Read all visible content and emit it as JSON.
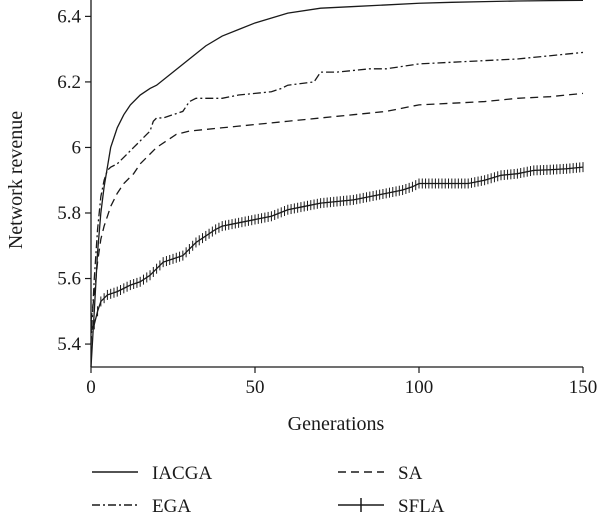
{
  "chart_data": {
    "type": "line",
    "title": "",
    "xlabel": "Generations",
    "ylabel": "Network revenue",
    "xlim": [
      0,
      150
    ],
    "ylim": [
      5.33,
      6.45
    ],
    "xticks": [
      0,
      50,
      100,
      150
    ],
    "yticks": [
      5.4,
      5.6,
      5.8,
      6,
      6.2,
      6.4
    ],
    "xtick_labels": [
      "0",
      "50",
      "100",
      "150"
    ],
    "ytick_labels": [
      "5.4",
      "5.6",
      "5.8",
      "6",
      "6.2",
      "6.4"
    ],
    "grid": false,
    "legend_position": "bottom",
    "series": [
      {
        "name": "IACGA",
        "style": "solid",
        "points": [
          [
            0,
            5.33
          ],
          [
            1,
            5.5
          ],
          [
            2,
            5.68
          ],
          [
            3,
            5.8
          ],
          [
            4,
            5.88
          ],
          [
            5,
            5.94
          ],
          [
            6,
            6.0
          ],
          [
            7,
            6.03
          ],
          [
            8,
            6.06
          ],
          [
            10,
            6.1
          ],
          [
            12,
            6.13
          ],
          [
            15,
            6.16
          ],
          [
            18,
            6.18
          ],
          [
            20,
            6.19
          ],
          [
            25,
            6.23
          ],
          [
            30,
            6.27
          ],
          [
            35,
            6.31
          ],
          [
            40,
            6.34
          ],
          [
            45,
            6.36
          ],
          [
            50,
            6.38
          ],
          [
            60,
            6.41
          ],
          [
            70,
            6.425
          ],
          [
            80,
            6.43
          ],
          [
            90,
            6.435
          ],
          [
            100,
            6.44
          ],
          [
            110,
            6.443
          ],
          [
            120,
            6.445
          ],
          [
            130,
            6.447
          ],
          [
            140,
            6.448
          ],
          [
            150,
            6.449
          ]
        ]
      },
      {
        "name": "EGA",
        "style": "dashdot",
        "points": [
          [
            0,
            5.4
          ],
          [
            1,
            5.6
          ],
          [
            2,
            5.75
          ],
          [
            3,
            5.85
          ],
          [
            4,
            5.9
          ],
          [
            5,
            5.93
          ],
          [
            6,
            5.94
          ],
          [
            8,
            5.95
          ],
          [
            10,
            5.97
          ],
          [
            13,
            6.0
          ],
          [
            15,
            6.02
          ],
          [
            17,
            6.04
          ],
          [
            18,
            6.05
          ],
          [
            19,
            6.08
          ],
          [
            20,
            6.09
          ],
          [
            22,
            6.09
          ],
          [
            25,
            6.1
          ],
          [
            28,
            6.11
          ],
          [
            30,
            6.14
          ],
          [
            32,
            6.15
          ],
          [
            40,
            6.15
          ],
          [
            45,
            6.16
          ],
          [
            50,
            6.165
          ],
          [
            55,
            6.17
          ],
          [
            58,
            6.18
          ],
          [
            60,
            6.19
          ],
          [
            68,
            6.2
          ],
          [
            70,
            6.23
          ],
          [
            75,
            6.23
          ],
          [
            80,
            6.235
          ],
          [
            85,
            6.24
          ],
          [
            90,
            6.24
          ],
          [
            100,
            6.255
          ],
          [
            110,
            6.26
          ],
          [
            120,
            6.265
          ],
          [
            130,
            6.27
          ],
          [
            140,
            6.28
          ],
          [
            145,
            6.285
          ],
          [
            150,
            6.29
          ]
        ]
      },
      {
        "name": "SA",
        "style": "dashed",
        "points": [
          [
            0,
            5.47
          ],
          [
            1,
            5.55
          ],
          [
            2,
            5.65
          ],
          [
            3,
            5.72
          ],
          [
            4,
            5.76
          ],
          [
            5,
            5.79
          ],
          [
            6,
            5.82
          ],
          [
            8,
            5.86
          ],
          [
            10,
            5.89
          ],
          [
            13,
            5.92
          ],
          [
            15,
            5.95
          ],
          [
            18,
            5.98
          ],
          [
            20,
            6.0
          ],
          [
            23,
            6.02
          ],
          [
            26,
            6.04
          ],
          [
            30,
            6.05
          ],
          [
            35,
            6.055
          ],
          [
            40,
            6.06
          ],
          [
            45,
            6.065
          ],
          [
            50,
            6.07
          ],
          [
            55,
            6.075
          ],
          [
            60,
            6.08
          ],
          [
            65,
            6.085
          ],
          [
            70,
            6.09
          ],
          [
            75,
            6.095
          ],
          [
            80,
            6.1
          ],
          [
            85,
            6.105
          ],
          [
            90,
            6.11
          ],
          [
            95,
            6.12
          ],
          [
            100,
            6.13
          ],
          [
            110,
            6.135
          ],
          [
            120,
            6.14
          ],
          [
            130,
            6.15
          ],
          [
            140,
            6.155
          ],
          [
            145,
            6.16
          ],
          [
            150,
            6.165
          ]
        ]
      },
      {
        "name": "SFLA",
        "style": "solid-plus",
        "points": [
          [
            0,
            5.44
          ],
          [
            1,
            5.46
          ],
          [
            2,
            5.5
          ],
          [
            3,
            5.53
          ],
          [
            4,
            5.54
          ],
          [
            5,
            5.55
          ],
          [
            8,
            5.56
          ],
          [
            10,
            5.57
          ],
          [
            12,
            5.58
          ],
          [
            15,
            5.59
          ],
          [
            18,
            5.61
          ],
          [
            20,
            5.63
          ],
          [
            22,
            5.65
          ],
          [
            25,
            5.66
          ],
          [
            28,
            5.67
          ],
          [
            30,
            5.69
          ],
          [
            32,
            5.71
          ],
          [
            35,
            5.73
          ],
          [
            38,
            5.75
          ],
          [
            40,
            5.76
          ],
          [
            45,
            5.77
          ],
          [
            50,
            5.78
          ],
          [
            55,
            5.79
          ],
          [
            60,
            5.81
          ],
          [
            65,
            5.82
          ],
          [
            70,
            5.83
          ],
          [
            75,
            5.835
          ],
          [
            80,
            5.84
          ],
          [
            85,
            5.85
          ],
          [
            90,
            5.86
          ],
          [
            95,
            5.87
          ],
          [
            98,
            5.88
          ],
          [
            100,
            5.89
          ],
          [
            105,
            5.89
          ],
          [
            110,
            5.89
          ],
          [
            115,
            5.89
          ],
          [
            120,
            5.9
          ],
          [
            125,
            5.915
          ],
          [
            130,
            5.92
          ],
          [
            135,
            5.93
          ],
          [
            140,
            5.932
          ],
          [
            145,
            5.935
          ],
          [
            150,
            5.94
          ]
        ]
      }
    ]
  }
}
